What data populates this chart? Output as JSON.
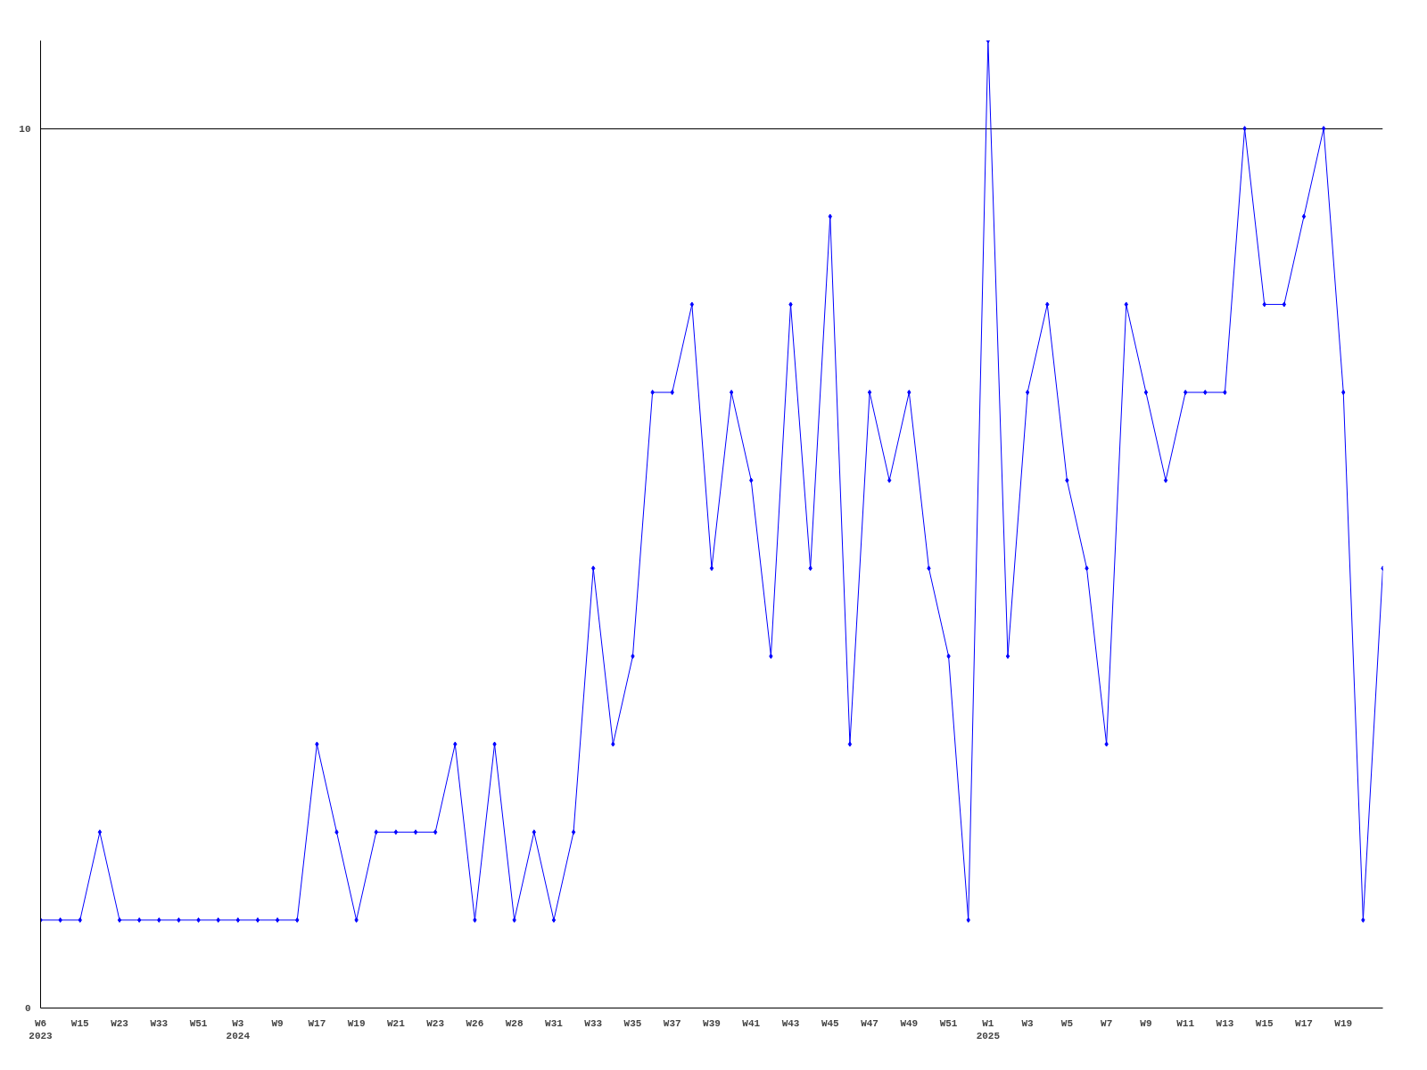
{
  "chart_data": {
    "type": "line",
    "categories": [
      "W6\n2023",
      null,
      "W15",
      null,
      "W23",
      null,
      "W33",
      null,
      "W51",
      null,
      "W3\n2024",
      null,
      "W9",
      null,
      "W17",
      null,
      "W19",
      null,
      "W21",
      null,
      "W23",
      null,
      "W26",
      null,
      "W28",
      null,
      "W31",
      null,
      "W33",
      null,
      "W35",
      null,
      "W37",
      null,
      "W39",
      null,
      "W41",
      null,
      "W43",
      null,
      "W45",
      null,
      "W47",
      null,
      "W49",
      null,
      "W51",
      null,
      "W1\n2025",
      null,
      "W3",
      null,
      "W5",
      null,
      "W7",
      null,
      "W9",
      null,
      "W11",
      null,
      "W13",
      null,
      "W15",
      null,
      "W17",
      null,
      "W19",
      null,
      null
    ],
    "series": [
      {
        "color": "#0000ff",
        "values": [
          1,
          1,
          1,
          2,
          1,
          1,
          1,
          1,
          1,
          1,
          1,
          1,
          1,
          1,
          3,
          2,
          1,
          2,
          2,
          2,
          2,
          3,
          1,
          3,
          1,
          2,
          1,
          2,
          5,
          3,
          4,
          7,
          7,
          8,
          5,
          7,
          6,
          4,
          8,
          5,
          9,
          3,
          7,
          6,
          7,
          5,
          4,
          1,
          11,
          4,
          7,
          8,
          6,
          5,
          3,
          8,
          7,
          6,
          7,
          7,
          7,
          10,
          8,
          8,
          9,
          10,
          7,
          1,
          5
        ]
      }
    ],
    "ylim": [
      0,
      11
    ],
    "yticks": [
      0,
      10
    ],
    "grid": "y",
    "marker": "diamond",
    "line_style": "solid"
  }
}
